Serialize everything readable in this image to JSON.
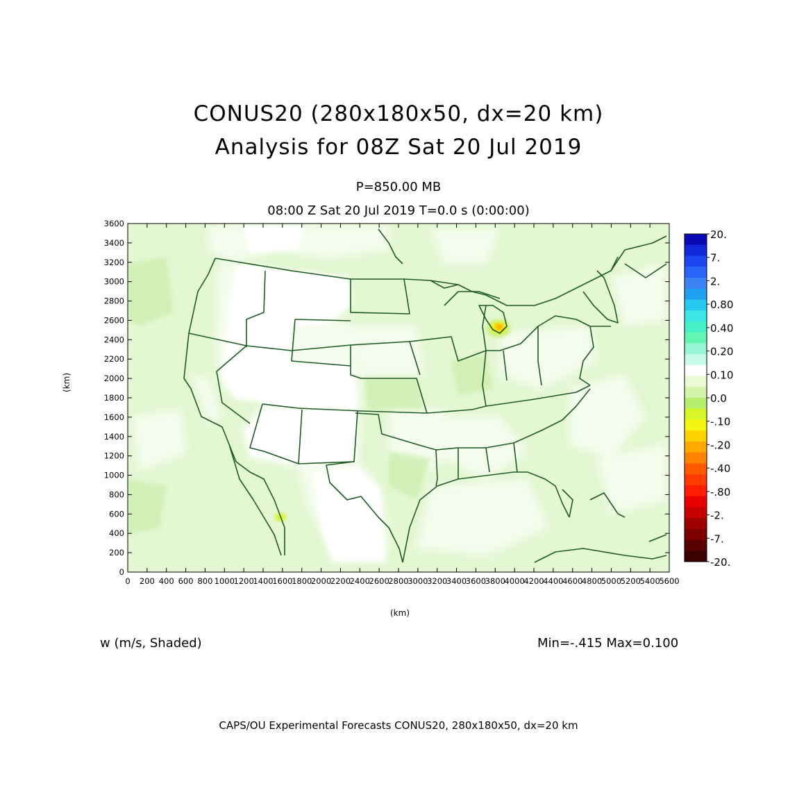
{
  "title": {
    "line1": "CONUS20 (280x180x50, dx=20 km)",
    "line2": "Analysis for 08Z Sat 20 Jul 2019"
  },
  "subtitle": {
    "level": "P=850.00 MB",
    "time": "08:00 Z Sat 20 Jul 2019    T=0.0 s (0:00:00)"
  },
  "field_label": "w (m/s, Shaded)",
  "minmax": "Min=-.415 Max=0.100",
  "footer": "CAPS/OU Experimental Forecasts  CONUS20, 280x180x50, dx=20 km",
  "chart_data": {
    "type": "heatmap",
    "xlabel": "(km)",
    "ylabel": "(km)",
    "xlim": [
      0,
      5600
    ],
    "ylim": [
      0,
      3600
    ],
    "x_ticks": [
      0,
      200,
      400,
      600,
      800,
      1000,
      1200,
      1400,
      1600,
      1800,
      2000,
      2200,
      2400,
      2600,
      2800,
      3000,
      3200,
      3400,
      3600,
      3800,
      4000,
      4200,
      4400,
      4600,
      4800,
      5000,
      5200,
      5400,
      5600
    ],
    "y_ticks": [
      0,
      200,
      400,
      600,
      800,
      1000,
      1200,
      1400,
      1600,
      1800,
      2000,
      2200,
      2400,
      2600,
      2800,
      3000,
      3200,
      3400,
      3600
    ],
    "colorbar": {
      "labels": [
        "20.",
        "7.",
        "2.",
        "0.80",
        "0.40",
        "0.20",
        "0.10",
        "0.0",
        "-.10",
        "-.20",
        "-.40",
        "-.80",
        "-2.",
        "-7.",
        "-20."
      ],
      "colors": [
        "#0a0ab4",
        "#1428dc",
        "#1e46f0",
        "#2864f5",
        "#3c82f5",
        "#1ea0f0",
        "#28c8f0",
        "#3ce6e6",
        "#46f0c8",
        "#64f5b4",
        "#96f5d2",
        "#c8faeb",
        "#ffffff",
        "#ebfad2",
        "#d2f5aa",
        "#b4f06e",
        "#d7f528",
        "#f5f514",
        "#ffd200",
        "#ffaa00",
        "#ff8200",
        "#ff5a00",
        "#ff3c00",
        "#ff1e00",
        "#e60000",
        "#c80000",
        "#a00000",
        "#7d0000",
        "#5a0000",
        "#3c0000"
      ]
    }
  }
}
